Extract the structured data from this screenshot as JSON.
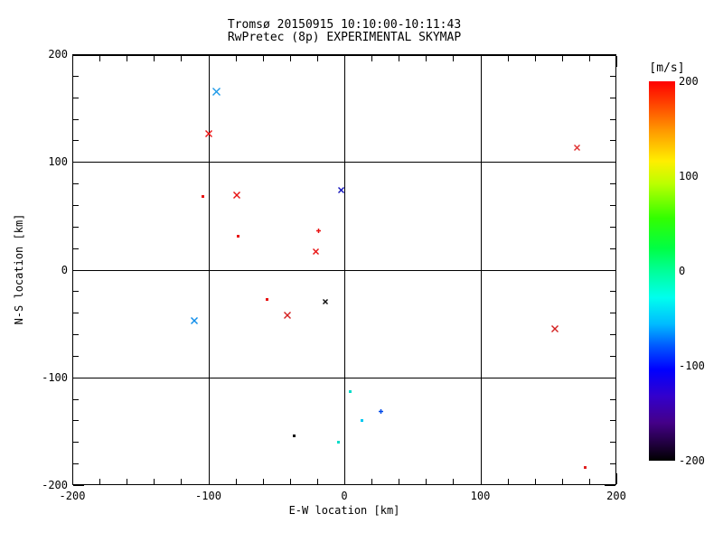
{
  "chart_data": {
    "type": "scatter",
    "title": "Tromsø 20150915 10:10:00-10:11:43",
    "subtitle": "RwPretec (8p) EXPERIMENTAL SKYMAP",
    "xlabel": "E-W location [km]",
    "ylabel": "N-S location [km]",
    "xlim": [
      -200,
      200
    ],
    "ylim": [
      -200,
      200
    ],
    "xticks": [
      -200,
      -100,
      0,
      100,
      200
    ],
    "yticks": [
      -200,
      -100,
      0,
      100,
      200
    ],
    "minor_tick_step": 20,
    "grid_x": [
      -100,
      0,
      100
    ],
    "grid_y": [
      -100,
      0,
      100
    ],
    "legend_position": "right-colorbar",
    "colorbar": {
      "title": "[m/s]",
      "lim": [
        -200,
        200
      ],
      "ticks": [
        200,
        100,
        0,
        -100,
        -200
      ],
      "colormap": "rainbow",
      "stops": [
        {
          "color": "#ff0000",
          "pos": 0
        },
        {
          "color": "#ff4400",
          "pos": 6
        },
        {
          "color": "#ff9900",
          "pos": 13
        },
        {
          "color": "#ffee00",
          "pos": 21
        },
        {
          "color": "#bbff00",
          "pos": 27
        },
        {
          "color": "#33ff00",
          "pos": 36
        },
        {
          "color": "#00ff44",
          "pos": 44
        },
        {
          "color": "#00ff99",
          "pos": 50
        },
        {
          "color": "#00ffee",
          "pos": 57
        },
        {
          "color": "#00bbff",
          "pos": 64
        },
        {
          "color": "#0055ff",
          "pos": 70
        },
        {
          "color": "#0000ff",
          "pos": 76
        },
        {
          "color": "#3300cc",
          "pos": 83
        },
        {
          "color": "#440088",
          "pos": 90
        },
        {
          "color": "#1d0038",
          "pos": 96
        },
        {
          "color": "#000000",
          "pos": 100
        }
      ]
    },
    "points": [
      {
        "x": -94,
        "y": 165,
        "marker": "x",
        "size": 9,
        "color": "#1e9ae8",
        "velocity_mps": -75
      },
      {
        "x": -100,
        "y": 126,
        "marker": "x",
        "size": 8,
        "color": "#e81212",
        "velocity_mps": 190
      },
      {
        "x": -104,
        "y": 68,
        "marker": "dot",
        "size": 3,
        "color": "#e81212",
        "velocity_mps": 190
      },
      {
        "x": -79,
        "y": 69,
        "marker": "x",
        "size": 8,
        "color": "#e81212",
        "velocity_mps": 190
      },
      {
        "x": -2,
        "y": 74,
        "marker": "x",
        "size": 7,
        "color": "#1414bb",
        "velocity_mps": -115
      },
      {
        "x": -19,
        "y": 36,
        "marker": "plus",
        "size": 5,
        "color": "#e81212",
        "velocity_mps": 190
      },
      {
        "x": -78,
        "y": 31,
        "marker": "dot",
        "size": 3,
        "color": "#e81212",
        "velocity_mps": 190
      },
      {
        "x": -21,
        "y": 17,
        "marker": "x",
        "size": 7,
        "color": "#e81212",
        "velocity_mps": 190
      },
      {
        "x": -57,
        "y": -28,
        "marker": "dot",
        "size": 3,
        "color": "#e81212",
        "velocity_mps": 190
      },
      {
        "x": -14,
        "y": -30,
        "marker": "x",
        "size": 6,
        "color": "#0a0a0a",
        "velocity_mps": -195
      },
      {
        "x": -42,
        "y": -42,
        "marker": "x",
        "size": 8,
        "color": "#d42020",
        "velocity_mps": 185
      },
      {
        "x": -110,
        "y": -47,
        "marker": "x",
        "size": 8,
        "color": "#0b8ce9",
        "velocity_mps": -80
      },
      {
        "x": 155,
        "y": -55,
        "marker": "x",
        "size": 8,
        "color": "#d42020",
        "velocity_mps": 185
      },
      {
        "x": 171,
        "y": 113,
        "marker": "x",
        "size": 7,
        "color": "#e03030",
        "velocity_mps": 180
      },
      {
        "x": 4,
        "y": -113,
        "marker": "dot",
        "size": 3,
        "color": "#00dcc8",
        "velocity_mps": -30
      },
      {
        "x": 27,
        "y": -132,
        "marker": "plus",
        "size": 5,
        "color": "#0049e8",
        "velocity_mps": -90
      },
      {
        "x": 13,
        "y": -140,
        "marker": "dot",
        "size": 3,
        "color": "#00c8f0",
        "velocity_mps": -45
      },
      {
        "x": -37,
        "y": -154,
        "marker": "dot",
        "size": 3,
        "color": "#0a0a0a",
        "velocity_mps": -195
      },
      {
        "x": -4,
        "y": -160,
        "marker": "dot",
        "size": 3,
        "color": "#00dcc8",
        "velocity_mps": -30
      },
      {
        "x": 177,
        "y": -184,
        "marker": "dot",
        "size": 3,
        "color": "#e02020",
        "velocity_mps": 185
      }
    ]
  }
}
